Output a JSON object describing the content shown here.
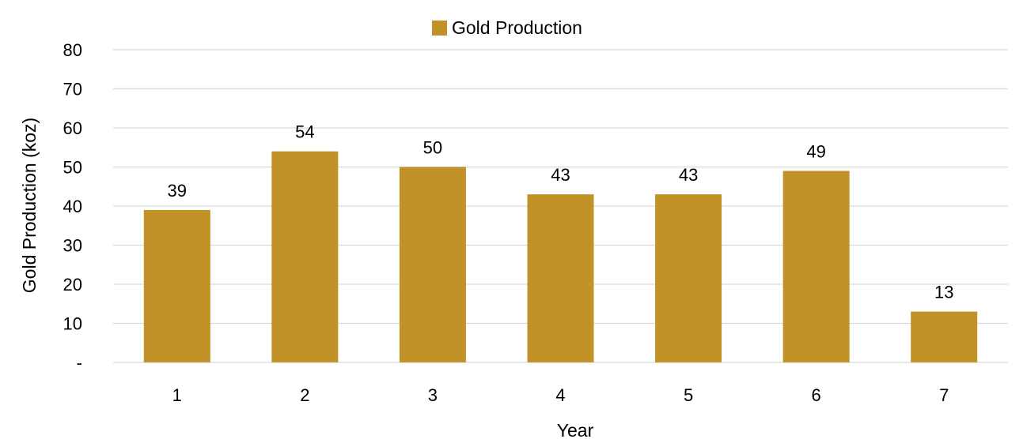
{
  "chart_data": {
    "type": "bar",
    "categories": [
      "1",
      "2",
      "3",
      "4",
      "5",
      "6",
      "7"
    ],
    "series": [
      {
        "name": "Gold Production",
        "values": [
          39,
          54,
          50,
          43,
          43,
          49,
          13
        ],
        "labels": [
          "39",
          "54",
          "50",
          "43",
          "43",
          "49",
          "13"
        ],
        "color": "#C09228"
      }
    ],
    "xlabel": "Year",
    "ylabel": "Gold Production (koz)",
    "ylim": [
      0,
      80
    ],
    "yticks": [
      0,
      10,
      20,
      30,
      40,
      50,
      60,
      70,
      80
    ],
    "ytick_labels": [
      "-",
      "10",
      "20",
      "30",
      "40",
      "50",
      "60",
      "70",
      "80"
    ],
    "grid": true,
    "gridline_color": "#D9D9D9",
    "legend_position": "top-center"
  }
}
